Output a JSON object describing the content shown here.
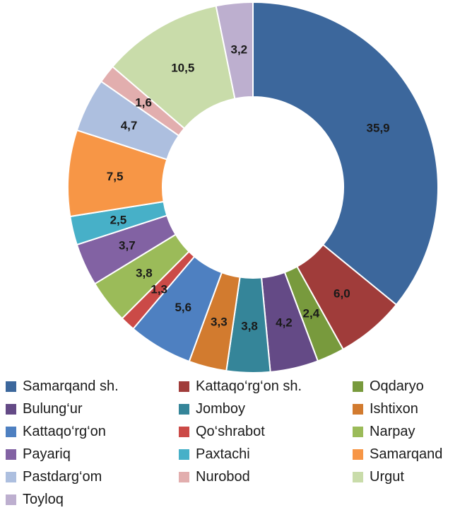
{
  "chart_data": {
    "type": "pie",
    "title": "",
    "categories": [
      "Samarqand sh.",
      "Kattaqo‘rg‘on sh.",
      "Oqdaryo",
      "Bulung‘ur",
      "Jomboy",
      "Ishtixon",
      "Kattaqo‘rg‘on",
      "Qo‘shrabot",
      "Narpay",
      "Payariq",
      "Paxtachi",
      "Samarqand",
      "Pastdarg‘om",
      "Nurobod",
      "Urgut",
      "Toyloq"
    ],
    "values": [
      35.9,
      6.0,
      2.4,
      4.2,
      3.8,
      3.3,
      5.6,
      1.3,
      3.8,
      3.7,
      2.5,
      7.5,
      4.7,
      1.6,
      10.5,
      3.2
    ],
    "labels": [
      "35,9",
      "6,0",
      "2,4",
      "4,2",
      "3,8",
      "3,3",
      "5,6",
      "1,3",
      "3,8",
      "3,7",
      "2,5",
      "7,5",
      "4,7",
      "1,6",
      "10,5",
      "3,2"
    ],
    "colors": [
      "#3c679c",
      "#a03c3a",
      "#789a3d",
      "#644a86",
      "#358599",
      "#d27b2f",
      "#4e80c1",
      "#cb4a47",
      "#9bbb59",
      "#8262a3",
      "#47b0c8",
      "#f79646",
      "#adbfdf",
      "#e2aeae",
      "#c9dcaa",
      "#bdafcf"
    ],
    "donut": true,
    "legend": {
      "position": "bottom",
      "columns": 3
    }
  }
}
